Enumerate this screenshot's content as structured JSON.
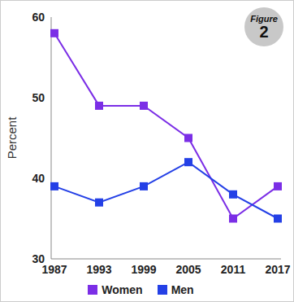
{
  "chart_data": {
    "type": "line",
    "y_label": "Percent",
    "annotations": [
      "Figure",
      "2"
    ],
    "categories": [
      "1987",
      "1993",
      "1999",
      "2005",
      "2011",
      "2017"
    ],
    "series": [
      {
        "name": "Women",
        "color": "#7b2ee6",
        "marker": "square",
        "values": [
          58,
          49,
          49,
          45,
          35,
          39
        ]
      },
      {
        "name": "Men",
        "color": "#2440e6",
        "marker": "square",
        "values": [
          39,
          37,
          39,
          42,
          38,
          35
        ]
      }
    ],
    "ylim": [
      30,
      60
    ],
    "yticks": [
      30,
      40,
      50,
      60
    ],
    "grid": false,
    "legend": "bottom"
  }
}
